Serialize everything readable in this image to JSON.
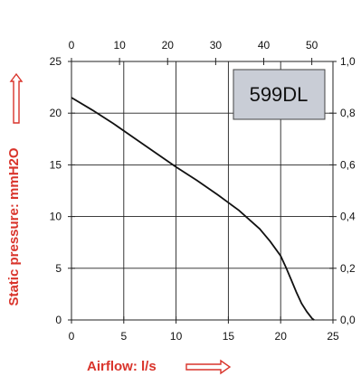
{
  "chart_data": {
    "type": "line",
    "model_label": "599DL",
    "xlabel": "Airflow: l/s",
    "ylabel": "Static pressure: mmH2O",
    "grid": true,
    "x_bottom": {
      "range": [
        0,
        25
      ],
      "ticks": [
        "0",
        "5",
        "10",
        "15",
        "20",
        "25"
      ]
    },
    "x_top": {
      "range": [
        0,
        54.4
      ],
      "ticks": [
        "0",
        "10",
        "20",
        "30",
        "40",
        "50"
      ]
    },
    "y_left": {
      "range": [
        0,
        25
      ],
      "ticks": [
        "0",
        "5",
        "10",
        "15",
        "20",
        "25"
      ]
    },
    "y_right": {
      "range": [
        0,
        1.0
      ],
      "ticks": [
        "0,0",
        "0,2",
        "0,4",
        "0,6",
        "0,8",
        "1,0"
      ]
    },
    "series": [
      {
        "x": [
          0,
          2,
          4,
          6,
          8,
          10,
          12,
          14,
          16,
          18,
          19,
          20,
          20.5,
          21,
          21.5,
          22,
          22.5,
          23,
          23.2
        ],
        "y": [
          21.5,
          20.3,
          19.0,
          17.6,
          16.2,
          14.8,
          13.5,
          12.1,
          10.6,
          8.8,
          7.6,
          6.2,
          5.1,
          3.9,
          2.7,
          1.6,
          0.8,
          0.15,
          0
        ]
      }
    ],
    "colors": {
      "curve": "#111111",
      "grid": "#222222",
      "title": "#d9342b",
      "model_box": "#c9cdd6"
    }
  }
}
